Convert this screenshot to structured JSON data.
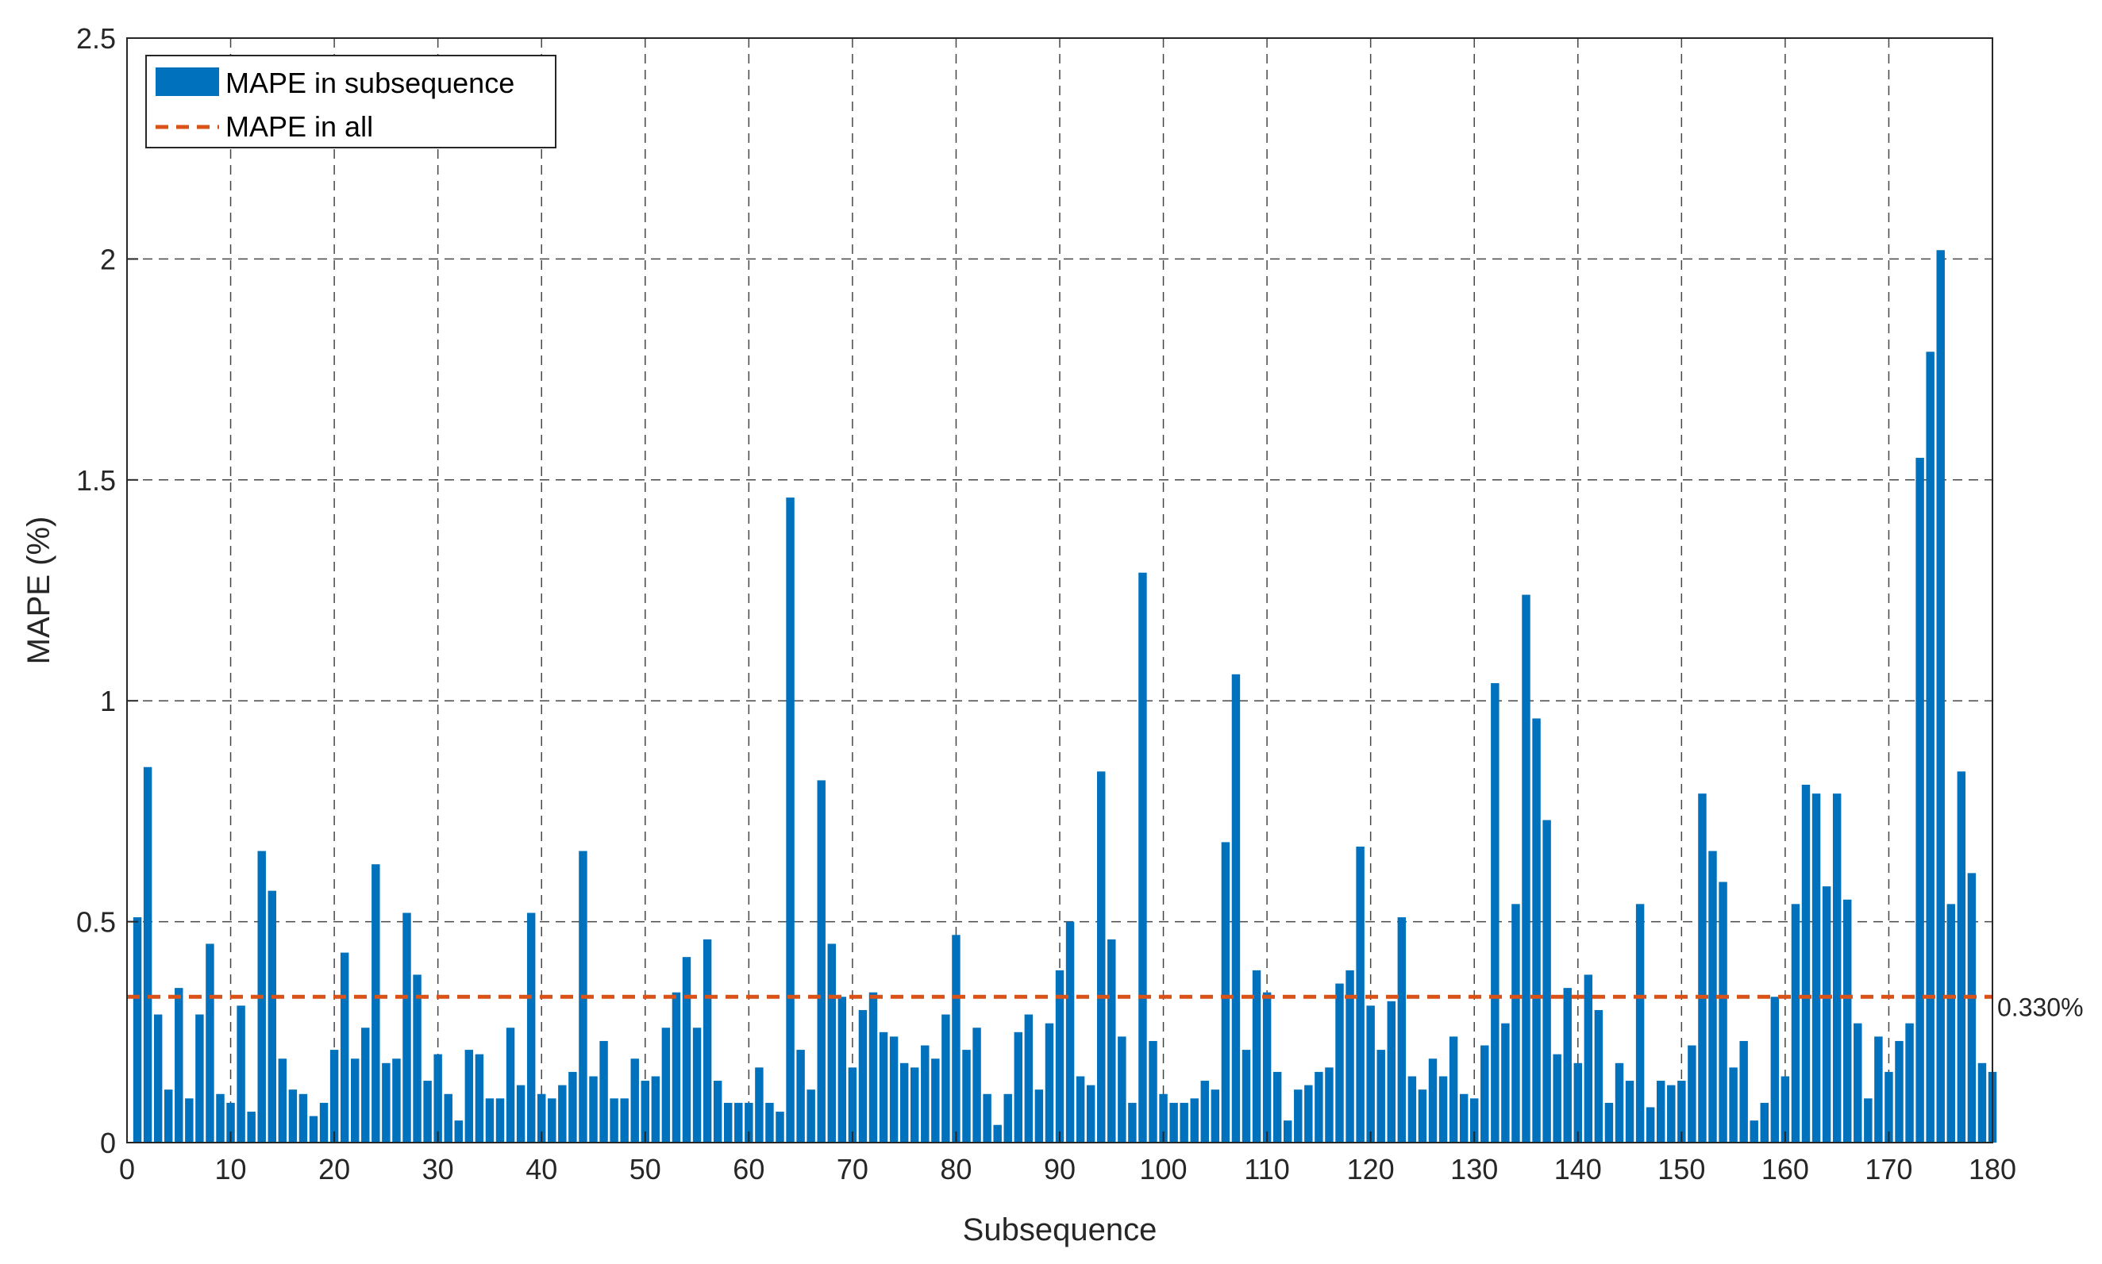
{
  "chart_data": {
    "type": "bar",
    "xlabel": "Subsequence",
    "ylabel": "MAPE (%)",
    "xlim": [
      0,
      180
    ],
    "ylim": [
      0,
      2.5
    ],
    "xticks": [
      "0",
      "10",
      "20",
      "30",
      "40",
      "50",
      "60",
      "70",
      "80",
      "90",
      "100",
      "110",
      "120",
      "130",
      "140",
      "150",
      "160",
      "170",
      "180"
    ],
    "yticks": [
      "0",
      "0.5",
      "1",
      "1.5",
      "2",
      "2.5"
    ],
    "grid": true,
    "legend_position": "top-left",
    "series": [
      {
        "name": "MAPE in subsequence",
        "color": "#0072BD",
        "values": [
          0.51,
          0.85,
          0.29,
          0.12,
          0.35,
          0.1,
          0.29,
          0.45,
          0.11,
          0.09,
          0.31,
          0.07,
          0.66,
          0.57,
          0.19,
          0.12,
          0.11,
          0.06,
          0.09,
          0.21,
          0.43,
          0.19,
          0.26,
          0.63,
          0.18,
          0.19,
          0.52,
          0.38,
          0.14,
          0.2,
          0.11,
          0.05,
          0.21,
          0.2,
          0.1,
          0.1,
          0.26,
          0.13,
          0.52,
          0.11,
          0.1,
          0.13,
          0.16,
          0.66,
          0.15,
          0.23,
          0.1,
          0.1,
          0.19,
          0.14,
          0.15,
          0.26,
          0.34,
          0.42,
          0.26,
          0.46,
          0.14,
          0.09,
          0.09,
          0.09,
          0.17,
          0.09,
          0.07,
          1.46,
          0.21,
          0.12,
          0.82,
          0.45,
          0.33,
          0.17,
          0.3,
          0.34,
          0.25,
          0.24,
          0.18,
          0.17,
          0.22,
          0.19,
          0.29,
          0.47,
          0.21,
          0.26,
          0.11,
          0.04,
          0.11,
          0.25,
          0.29,
          0.12,
          0.27,
          0.39,
          0.5,
          0.15,
          0.13,
          0.84,
          0.46,
          0.24,
          0.09,
          1.29,
          0.23,
          0.11,
          0.09,
          0.09,
          0.1,
          0.14,
          0.12,
          0.68,
          1.06,
          0.21,
          0.39,
          0.34,
          0.16,
          0.05,
          0.12,
          0.13,
          0.16,
          0.17,
          0.36,
          0.39,
          0.67,
          0.31,
          0.21,
          0.32,
          0.51,
          0.15,
          0.12,
          0.19,
          0.15,
          0.24,
          0.11,
          0.1,
          0.22,
          1.04,
          0.27,
          0.54,
          1.24,
          0.96,
          0.73,
          0.2,
          0.35,
          0.18,
          0.38,
          0.3,
          0.09,
          0.18,
          0.14,
          0.54,
          0.08,
          0.14,
          0.13,
          0.14,
          0.22,
          0.79,
          0.66,
          0.59,
          0.17,
          0.23,
          0.05,
          0.09,
          0.33,
          0.15,
          0.54,
          0.81,
          0.79,
          0.58,
          0.79,
          0.55,
          0.27,
          0.1,
          0.24,
          0.16,
          0.23,
          0.27,
          1.55,
          1.79,
          2.02,
          0.54,
          0.84,
          0.61,
          0.18,
          0.16
        ]
      }
    ],
    "reference_line": {
      "name": "MAPE in all",
      "value": 0.33,
      "label": "0.330%",
      "color": "#D95319",
      "style": "dashed"
    }
  }
}
